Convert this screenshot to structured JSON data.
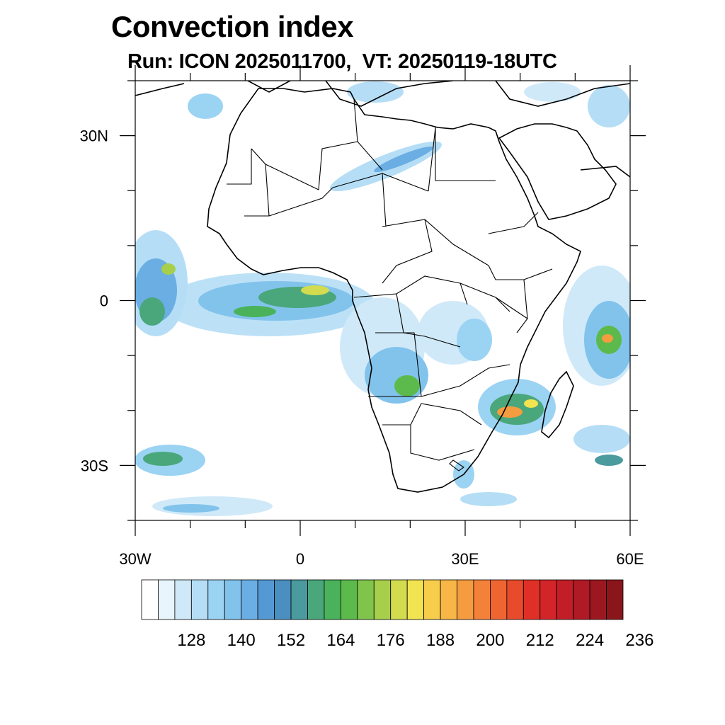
{
  "title": "Convection index",
  "subtitle": "Run: ICON 2025011700,  VT: 20250119-18UTC",
  "map": {
    "lon_range": [
      -30,
      60
    ],
    "lat_range": [
      -40,
      40
    ],
    "x_ticks": [
      {
        "lon": -30,
        "label": "30W"
      },
      {
        "lon": 0,
        "label": "0"
      },
      {
        "lon": 30,
        "label": "30E"
      },
      {
        "lon": 60,
        "label": "60E"
      }
    ],
    "y_ticks": [
      {
        "lat": 30,
        "label": "30N"
      },
      {
        "lat": 0,
        "label": "0"
      },
      {
        "lat": -30,
        "label": "30S"
      }
    ],
    "minor_lon_step": 10,
    "minor_lat_step": 10
  },
  "colorbar": {
    "colors": [
      "#ffffff",
      "#e8f5fd",
      "#cfe9f9",
      "#b5def6",
      "#9bd3f3",
      "#82c3ec",
      "#6aaee3",
      "#5599d4",
      "#4b8ec0",
      "#4a9a9e",
      "#4aa77c",
      "#49b25a",
      "#5cba4c",
      "#80c44c",
      "#a8cf4c",
      "#d2dc4e",
      "#f2e350",
      "#f8cd4c",
      "#f7b646",
      "#f69c40",
      "#f4813a",
      "#ef6532",
      "#e84a2c",
      "#df3028",
      "#d2252a",
      "#c21e28",
      "#b01a24",
      "#9c1820",
      "#8a161b"
    ],
    "labels": [
      "128",
      "140",
      "152",
      "164",
      "176",
      "188",
      "200",
      "212",
      "224",
      "236"
    ]
  }
}
